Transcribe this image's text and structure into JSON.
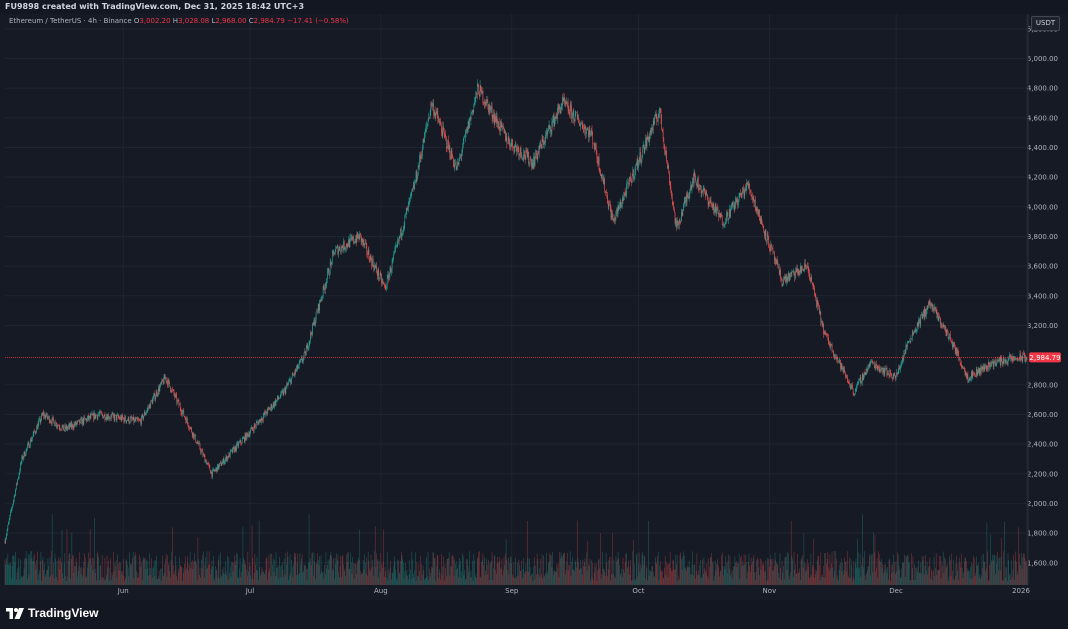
{
  "header": {
    "attribution": "FU9898 created with TradingView.com, Dec 31, 2025 18:42 UTC+3"
  },
  "legend": {
    "symbol": "Ethereum / TetherUS · 4h · Binance",
    "open_label": "O",
    "open": "3,002.20",
    "high_label": "H",
    "high": "3,028.08",
    "low_label": "L",
    "low": "2,968.00",
    "close_label": "C",
    "close": "2,984.79",
    "change": "−17.41 (−0.58%)"
  },
  "currency_button": "USDT",
  "footer": {
    "logo_text": "TradingView"
  },
  "colors": {
    "up": "#26a69a",
    "down": "#ef5350",
    "background": "#161a25",
    "grid": "#1f2430",
    "text": "#b2b5be",
    "price_line": "#f23645"
  },
  "chart_data": {
    "type": "candlestick",
    "symbol": "ETHUSDT",
    "interval": "4h",
    "exchange": "Binance",
    "current_price": "2,984.79",
    "y_ticks": [
      "5,200.00",
      "5,000.00",
      "4,800.00",
      "4,600.00",
      "4,400.00",
      "4,200.00",
      "4,000.00",
      "3,800.00",
      "3,600.00",
      "3,400.00",
      "3,200.00",
      "2,800.00",
      "2,600.00",
      "2,400.00",
      "2,200.00",
      "2,000.00",
      "1,800.00",
      "1,600.00"
    ],
    "y_tick_values": [
      5200,
      5000,
      4800,
      4600,
      4400,
      4200,
      4000,
      3800,
      3600,
      3400,
      3200,
      2800,
      2600,
      2400,
      2200,
      2000,
      1800,
      1600
    ],
    "x_ticks": [
      "Jun",
      "Jul",
      "Aug",
      "Sep",
      "Oct",
      "Nov",
      "Dec",
      "2026"
    ],
    "x_tick_dates": [
      "2025-06-01",
      "2025-07-01",
      "2025-08-01",
      "2025-09-01",
      "2025-10-01",
      "2025-11-01",
      "2025-12-01",
      "2026-01-01"
    ],
    "x_start": "2025-05-04",
    "x_end": "2026-01-01",
    "ylim": [
      1450,
      5300
    ],
    "price_path": [
      [
        "2025-05-04",
        1750
      ],
      [
        "2025-05-08",
        2300
      ],
      [
        "2025-05-13",
        2600
      ],
      [
        "2025-05-18",
        2500
      ],
      [
        "2025-05-26",
        2600
      ],
      [
        "2025-06-05",
        2550
      ],
      [
        "2025-06-11",
        2850
      ],
      [
        "2025-06-17",
        2500
      ],
      [
        "2025-06-22",
        2200
      ],
      [
        "2025-06-30",
        2450
      ],
      [
        "2025-07-09",
        2750
      ],
      [
        "2025-07-14",
        3000
      ],
      [
        "2025-07-21",
        3700
      ],
      [
        "2025-07-27",
        3800
      ],
      [
        "2025-08-02",
        3450
      ],
      [
        "2025-08-09",
        4150
      ],
      [
        "2025-08-13",
        4700
      ],
      [
        "2025-08-19",
        4250
      ],
      [
        "2025-08-24",
        4800
      ],
      [
        "2025-08-31",
        4450
      ],
      [
        "2025-09-06",
        4300
      ],
      [
        "2025-09-13",
        4700
      ],
      [
        "2025-09-20",
        4480
      ],
      [
        "2025-09-25",
        3900
      ],
      [
        "2025-10-06",
        4650
      ],
      [
        "2025-10-10",
        3850
      ],
      [
        "2025-10-14",
        4200
      ],
      [
        "2025-10-21",
        3900
      ],
      [
        "2025-10-27",
        4150
      ],
      [
        "2025-11-04",
        3500
      ],
      [
        "2025-11-10",
        3600
      ],
      [
        "2025-11-14",
        3150
      ],
      [
        "2025-11-21",
        2750
      ],
      [
        "2025-11-25",
        2950
      ],
      [
        "2025-12-01",
        2850
      ],
      [
        "2025-12-04",
        3100
      ],
      [
        "2025-12-09",
        3350
      ],
      [
        "2025-12-14",
        3100
      ],
      [
        "2025-12-18",
        2850
      ],
      [
        "2025-12-24",
        2950
      ],
      [
        "2025-12-31",
        2985
      ]
    ]
  }
}
